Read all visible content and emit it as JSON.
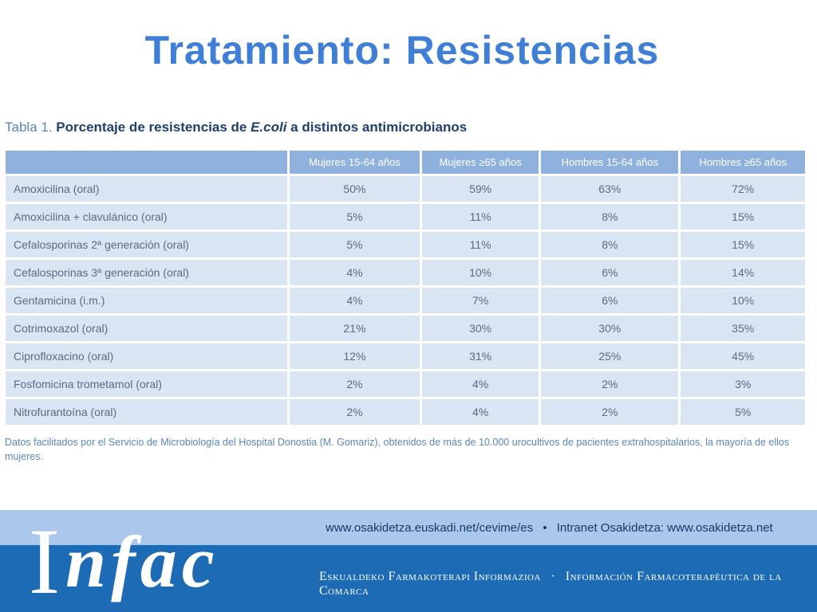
{
  "slide": {
    "title": "Tratamiento: Resistencias"
  },
  "table": {
    "caption_prefix": "Tabla 1.",
    "caption_main": "Porcentaje de resistencias de",
    "caption_em": "E.coli",
    "caption_tail": "a distintos antimicrobianos",
    "headers": [
      "Mujeres 15-64 años",
      "Mujeres ≥65 años",
      "Hombres 15-64 años",
      "Hombres ≥65 años"
    ],
    "rows": [
      {
        "drug": "Amoxicilina (oral)",
        "values": [
          "50%",
          "59%",
          "63%",
          "72%"
        ]
      },
      {
        "drug": "Amoxicilina + clavulánico (oral)",
        "values": [
          "5%",
          "11%",
          "8%",
          "15%"
        ]
      },
      {
        "drug": "Cefalosporinas 2ª generación (oral)",
        "values": [
          "5%",
          "11%",
          "8%",
          "15%"
        ]
      },
      {
        "drug": "Cefalosporinas 3ª generación (oral)",
        "values": [
          "4%",
          "10%",
          "6%",
          "14%"
        ]
      },
      {
        "drug": "Gentamicina (i.m.)",
        "values": [
          "4%",
          "7%",
          "6%",
          "10%"
        ]
      },
      {
        "drug": "Cotrimoxazol (oral)",
        "values": [
          "21%",
          "30%",
          "30%",
          "35%"
        ]
      },
      {
        "drug": "Ciprofloxacino (oral)",
        "values": [
          "12%",
          "31%",
          "25%",
          "45%"
        ]
      },
      {
        "drug": "Fosfomicina trometamol (oral)",
        "values": [
          "2%",
          "4%",
          "2%",
          "3%"
        ]
      },
      {
        "drug": "Nitrofurantoína (oral)",
        "values": [
          "2%",
          "4%",
          "2%",
          "5%"
        ]
      }
    ],
    "footnote": "Datos facilitados por el Servicio de Microbiología del Hospital Donostia (M. Gomariz), obtenidos de más de 10.000 urocultivos de pacientes extrahospitalarios, la mayoría de ellos mujeres."
  },
  "footer": {
    "url_1": "www.osakidetza.euskadi.net/cevime/es",
    "bullet": "•",
    "url_2": "Intranet Osakidetza: www.osakidetza.net",
    "tagline_left": "Eskualdeko Farmakoterapi Informazioa",
    "tagline_sep": "·",
    "tagline_right": "Información Farmacoterapéutica de la Comarca",
    "logo_initial": "I",
    "logo_rest": "nfac"
  },
  "colors": {
    "title": "#3f7fd6",
    "header_bg": "#8fb1dd",
    "cell_bg": "#d9e5f3",
    "footer_light": "#a9c8ec",
    "footer_dark": "#1d6bb5"
  }
}
